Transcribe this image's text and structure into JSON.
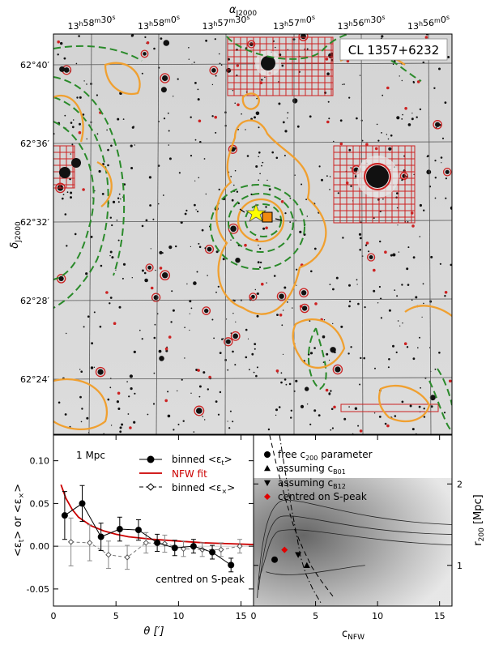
{
  "figure": {
    "cluster_label": "CL 1357+6232",
    "ra_axis_label": "α",
    "ra_axis_sub": "J2000",
    "dec_axis_label": "δ",
    "dec_axis_sub": "J2000",
    "ra_ticks": [
      {
        "h": "13",
        "m": "58",
        "s": "30"
      },
      {
        "h": "13",
        "m": "58",
        "s": "0"
      },
      {
        "h": "13",
        "m": "57",
        "s": "30"
      },
      {
        "h": "13",
        "m": "57",
        "s": "0"
      },
      {
        "h": "13",
        "m": "56",
        "s": "30"
      },
      {
        "h": "13",
        "m": "56",
        "s": "0"
      }
    ],
    "dec_ticks": [
      "62°40′",
      "62°36′",
      "62°32′",
      "62°28′",
      "62°24′"
    ],
    "colors": {
      "contour_orange": "#f0a030",
      "contour_green": "#2a8a2a",
      "mask_red": "#cc2222",
      "star_yellow": "#ffff00",
      "square_orange": "#f08a10"
    }
  },
  "chart_data": [
    {
      "type": "line",
      "title": "",
      "annotation": "1 Mpc",
      "annotation2": "centred on S-peak",
      "xlabel": "θ [′]",
      "ylabel": "<ε",
      "ylabel_sub_t": "t",
      "ylabel_mid": "> or <ε",
      "ylabel_sub_x": "×",
      "ylabel_end": ">",
      "xlim": [
        0,
        16
      ],
      "ylim": [
        -0.07,
        0.13
      ],
      "xticks": [
        0,
        5,
        10,
        15
      ],
      "yticks": [
        -0.05,
        0.0,
        0.05,
        0.1
      ],
      "ytick_labels": [
        "-0.05",
        "0.00",
        "0.05",
        "0.10"
      ],
      "legend": {
        "binned_t_prefix": "binned <ε",
        "binned_t_sub": "t",
        "nfw": "NFW fit",
        "binned_x_prefix": "binned <ε",
        "binned_x_sub": "×",
        "suffix": ">"
      },
      "series": [
        {
          "name": "binned_t",
          "x": [
            0.9,
            2.3,
            3.8,
            5.3,
            6.8,
            8.3,
            9.7,
            11.2,
            12.7,
            14.2
          ],
          "y": [
            0.036,
            0.05,
            0.011,
            0.02,
            0.019,
            0.004,
            -0.002,
            0.0,
            -0.007,
            -0.022
          ],
          "err": [
            0.028,
            0.021,
            0.016,
            0.014,
            0.012,
            0.01,
            0.009,
            0.008,
            0.008,
            0.008
          ]
        },
        {
          "name": "binned_x",
          "x": [
            1.4,
            2.9,
            4.4,
            5.9,
            7.4,
            8.9,
            10.4,
            11.9,
            13.4,
            14.9
          ],
          "y": [
            0.005,
            0.004,
            -0.01,
            -0.013,
            0.004,
            0.003,
            -0.003,
            -0.004,
            -0.004,
            0.0
          ],
          "err": [
            0.028,
            0.021,
            0.016,
            0.014,
            0.012,
            0.01,
            0.009,
            0.008,
            0.008,
            0.008
          ]
        },
        {
          "name": "nfw",
          "x": [
            0.6,
            1.0,
            1.5,
            2.0,
            3.0,
            4.0,
            5.0,
            6.0,
            8.0,
            10.0,
            12.0,
            14.0,
            16.0
          ],
          "y": [
            0.072,
            0.056,
            0.043,
            0.034,
            0.024,
            0.018,
            0.014,
            0.011,
            0.008,
            0.006,
            0.004,
            0.003,
            0.002
          ]
        }
      ]
    },
    {
      "type": "scatter",
      "title": "",
      "xlabel": "c",
      "xlabel_sub": "NFW",
      "ylabel": "r",
      "ylabel_sub": "200",
      "ylabel_unit": " [Mpc]",
      "xlim": [
        0,
        16
      ],
      "ylim": [
        0.5,
        2.6
      ],
      "xticks": [
        0,
        5,
        10,
        15
      ],
      "yticks": [
        1,
        2
      ],
      "legend": [
        {
          "marker": "circle",
          "label": "free c",
          "sub": "200",
          "tail": " parameter"
        },
        {
          "marker": "triangle-up",
          "label": "assuming c",
          "sub": "B01",
          "tail": ""
        },
        {
          "marker": "triangle-down",
          "label": "assuming c",
          "sub": "B12",
          "tail": ""
        },
        {
          "marker": "diamond",
          "label": "centred on S-peak",
          "sub": "",
          "tail": ""
        }
      ],
      "points": [
        {
          "name": "free",
          "marker": "circle",
          "x": 1.7,
          "y": 1.07
        },
        {
          "name": "B01",
          "marker": "triangle-up",
          "x": 4.3,
          "y": 1.0
        },
        {
          "name": "B12",
          "marker": "triangle-down",
          "x": 3.6,
          "y": 1.13
        },
        {
          "name": "S-peak",
          "marker": "diamond",
          "x": 2.5,
          "y": 1.19
        }
      ],
      "curve_dashdot": {
        "x": [
          2.1,
          2.5,
          3.0,
          3.5,
          3.8,
          4.2,
          4.8,
          5.5
        ],
        "y": [
          2.6,
          2.2,
          1.75,
          1.35,
          1.1,
          0.9,
          0.7,
          0.52
        ]
      },
      "curve_dashed": {
        "x": [
          1.3,
          1.9,
          2.6,
          3.3,
          4.0,
          4.7,
          5.5,
          6.5
        ],
        "y": [
          2.6,
          2.2,
          1.8,
          1.45,
          1.2,
          0.98,
          0.8,
          0.6
        ]
      }
    }
  ]
}
